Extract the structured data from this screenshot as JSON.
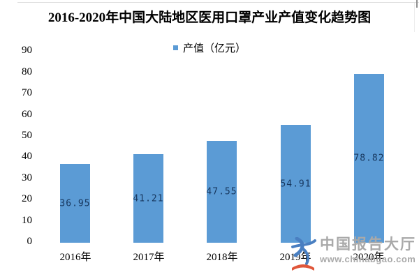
{
  "chart_data": {
    "type": "bar",
    "title": "2016-2020年中国大陆地区医用口罩产业产值变化趋势图",
    "categories": [
      "2016年",
      "2017年",
      "2018年",
      "2019年",
      "2020年"
    ],
    "series": [
      {
        "name": "产值（亿元）",
        "values": [
          36.95,
          41.21,
          47.55,
          54.91,
          78.82
        ]
      }
    ],
    "value_labels": [
      "36.95",
      "41.21",
      "47.55",
      "54.91",
      "78.82"
    ],
    "legend": [
      {
        "label": "产值（亿元）",
        "color": "#5B9BD5"
      }
    ],
    "legend_position": "top-center",
    "xlabel": "",
    "ylabel": "",
    "ylim": [
      0,
      90
    ],
    "yticks": [
      0,
      10,
      20,
      30,
      40,
      50,
      60,
      70,
      80,
      90
    ],
    "grid": false
  },
  "colors": {
    "bar": "#5B9BD5",
    "value_label": "#17375E",
    "axis_text": "#000000",
    "watermark_text": "#A9A9A9",
    "logo_blue": "#4A7FC1",
    "logo_red": "#E0573B"
  },
  "watermark": {
    "name": "中国报告大厅",
    "url": "www.chinabgao.com"
  }
}
